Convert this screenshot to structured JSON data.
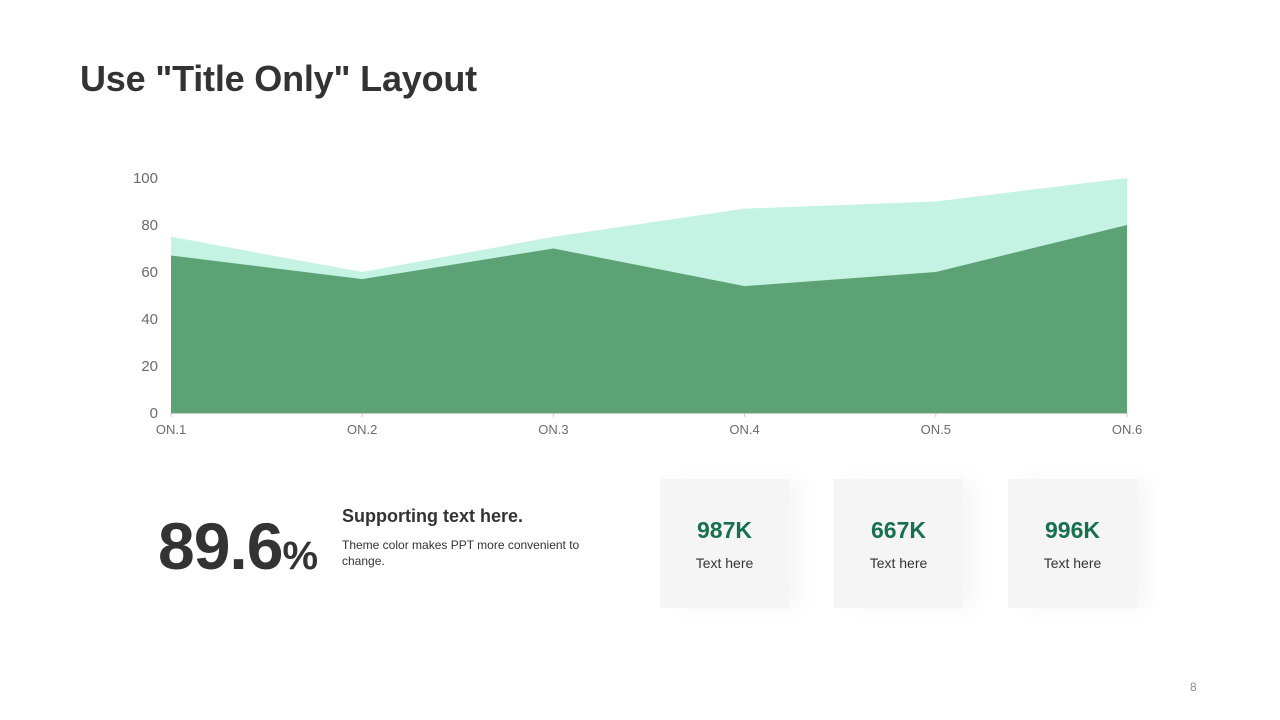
{
  "slide": {
    "title": "Use \"Title Only\" Layout",
    "page_number": "8"
  },
  "kpi": {
    "value": "89.6",
    "unit": "%",
    "heading": "Supporting text here.",
    "body": "Theme color makes PPT more convenient to change."
  },
  "stats": [
    {
      "value": "987K",
      "label": "Text here"
    },
    {
      "value": "667K",
      "label": "Text here"
    },
    {
      "value": "996K",
      "label": "Text here"
    }
  ],
  "colors": {
    "back_area": "#c5f3e3",
    "front_area": "#5da274",
    "stat_value": "#17704f",
    "axis": "#c8c8c8"
  },
  "chart_data": {
    "type": "area",
    "categories": [
      "ON.1",
      "ON.2",
      "ON.3",
      "ON.4",
      "ON.5",
      "ON.6"
    ],
    "series": [
      {
        "values": [
          75,
          60,
          75,
          87,
          90,
          100
        ]
      },
      {
        "values": [
          67,
          57,
          70,
          54,
          60,
          80
        ]
      }
    ],
    "ylim": [
      0,
      100
    ],
    "yticks": [
      0,
      20,
      40,
      60,
      80,
      100
    ],
    "grid": false,
    "legend": "none"
  }
}
